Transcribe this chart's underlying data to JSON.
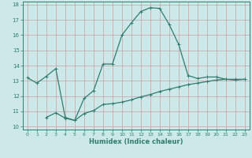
{
  "xlabel": "Humidex (Indice chaleur)",
  "bg_color": "#cce8e8",
  "grid_color": "#b0d0d0",
  "line_color": "#2e7d6e",
  "xlim": [
    -0.5,
    23.5
  ],
  "ylim": [
    9.8,
    18.2
  ],
  "xticks": [
    0,
    1,
    2,
    3,
    4,
    5,
    6,
    7,
    8,
    9,
    10,
    11,
    12,
    13,
    14,
    15,
    16,
    17,
    18,
    19,
    20,
    21,
    22,
    23
  ],
  "yticks": [
    10,
    11,
    12,
    13,
    14,
    15,
    16,
    17,
    18
  ],
  "curve1_x": [
    0,
    1,
    2,
    3,
    4,
    5,
    6,
    7,
    8,
    9,
    10,
    11,
    12,
    13,
    14,
    15,
    16,
    17,
    18,
    19,
    20,
    21,
    22,
    23
  ],
  "curve1_y": [
    13.2,
    12.85,
    13.3,
    13.8,
    10.6,
    10.4,
    11.85,
    12.35,
    14.1,
    14.1,
    16.0,
    16.8,
    17.55,
    17.8,
    17.75,
    16.7,
    15.4,
    13.35,
    13.15,
    13.25,
    13.25,
    13.1,
    13.05,
    13.1
  ],
  "curve2_x": [
    2,
    3,
    4,
    5,
    6,
    7,
    8,
    9,
    10,
    11,
    12,
    13,
    14,
    15,
    16,
    17,
    18,
    19,
    20,
    21,
    22,
    23
  ],
  "curve2_y": [
    10.6,
    10.9,
    10.55,
    10.4,
    10.85,
    11.05,
    11.45,
    11.5,
    11.6,
    11.75,
    11.95,
    12.1,
    12.3,
    12.45,
    12.6,
    12.75,
    12.85,
    12.95,
    13.05,
    13.1,
    13.1,
    13.1
  ]
}
